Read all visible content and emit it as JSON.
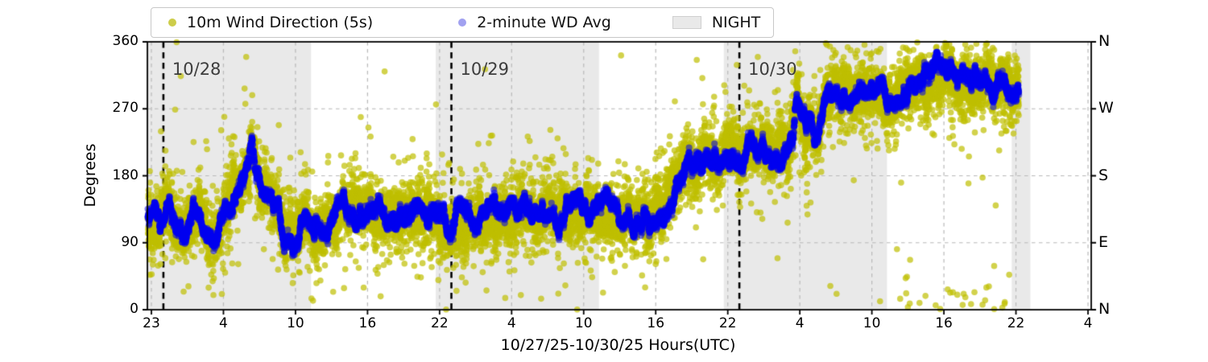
{
  "figure": {
    "ylabel": "Degrees",
    "xlabel": "10/27/25-10/30/25  Hours(UTC)"
  },
  "legend": {
    "items": [
      {
        "label": "10m Wind Direction (5s)",
        "marker": "dot",
        "display_color": "#cdcd4a"
      },
      {
        "label": "2-minute WD Avg",
        "marker": "dot",
        "display_color": "#a1a1f0"
      },
      {
        "label": "NIGHT",
        "marker": "patch",
        "display_color": "#e9e9e9"
      }
    ]
  },
  "chart_data": {
    "type": "scatter",
    "title": "",
    "xlabel": "10/27/25-10/30/25  Hours(UTC)",
    "ylabel": "Degrees",
    "ylim": [
      0,
      360
    ],
    "y_ticks": [
      0,
      90,
      180,
      270,
      360
    ],
    "right_axis_labels_bottom_to_top": [
      "N",
      "E",
      "S",
      "W",
      "N"
    ],
    "x_tick_labels": [
      "23",
      "4",
      "10",
      "16",
      "22",
      "4",
      "10",
      "16",
      "22",
      "4",
      "10",
      "16",
      "22",
      "4"
    ],
    "x_axis_start": "10/27/25 23:00 UTC",
    "grid": true,
    "legend_position": "top-center-outside",
    "series": [
      {
        "name": "10m Wind Direction (5s)",
        "color": "#bfbf00",
        "marker": "dot",
        "sample_period_s": 5
      },
      {
        "name": "2-minute WD Avg",
        "color": "#0000f0",
        "marker": "dot",
        "sample_period_s": 120
      }
    ],
    "night_bands_hours": [
      [
        -0.35,
        13.3
      ],
      [
        23.7,
        37.3
      ],
      [
        47.7,
        61.3
      ],
      [
        71.7,
        73.25
      ]
    ],
    "date_lines": [
      {
        "label": "10/28",
        "hour": 1
      },
      {
        "label": "10/29",
        "hour": 25
      },
      {
        "label": "10/30",
        "hour": 49
      }
    ],
    "data_start_hour": -0.3,
    "data_end_hour": 72.3,
    "trend_deg_by_hour": [
      [
        -0.3,
        125
      ],
      [
        0,
        125
      ],
      [
        0.7,
        112
      ],
      [
        1.5,
        132
      ],
      [
        2.3,
        100
      ],
      [
        2.8,
        95
      ],
      [
        3.5,
        133
      ],
      [
        4,
        138
      ],
      [
        4.6,
        104
      ],
      [
        5.2,
        95
      ],
      [
        6,
        138
      ],
      [
        6.8,
        150
      ],
      [
        7.5,
        163
      ],
      [
        8,
        195
      ],
      [
        8.35,
        225
      ],
      [
        8.7,
        185
      ],
      [
        9.2,
        150
      ],
      [
        9.9,
        158
      ],
      [
        10.6,
        150
      ],
      [
        11.1,
        97
      ],
      [
        11.8,
        90
      ],
      [
        12.4,
        120
      ],
      [
        13,
        127
      ],
      [
        13.6,
        112
      ],
      [
        14.3,
        128
      ],
      [
        15,
        120
      ],
      [
        16,
        128
      ],
      [
        17,
        122
      ],
      [
        18,
        130
      ],
      [
        19,
        125
      ],
      [
        20,
        133
      ],
      [
        21,
        126
      ],
      [
        22,
        130
      ],
      [
        23,
        120
      ],
      [
        24,
        130
      ],
      [
        24.8,
        108
      ],
      [
        25.5,
        128
      ],
      [
        26.5,
        125
      ],
      [
        27.5,
        130
      ],
      [
        28.5,
        126
      ],
      [
        29.5,
        131
      ],
      [
        30.5,
        126
      ],
      [
        31.5,
        130
      ],
      [
        32.5,
        127
      ],
      [
        33.5,
        130
      ],
      [
        34.5,
        126
      ],
      [
        35.5,
        131
      ],
      [
        36.5,
        128
      ],
      [
        37.5,
        131
      ],
      [
        38.5,
        128
      ],
      [
        39.5,
        125
      ],
      [
        40.3,
        112
      ],
      [
        41,
        125
      ],
      [
        41.6,
        118
      ],
      [
        42.2,
        140
      ],
      [
        42.8,
        132
      ],
      [
        43.4,
        155
      ],
      [
        44,
        180
      ],
      [
        44.6,
        200
      ],
      [
        45.2,
        193
      ],
      [
        46,
        207
      ],
      [
        46.6,
        198
      ],
      [
        47.2,
        210
      ],
      [
        48,
        205
      ],
      [
        48.6,
        213
      ],
      [
        49.4,
        207
      ],
      [
        50,
        214
      ],
      [
        50.6,
        208
      ],
      [
        51.2,
        217
      ],
      [
        51.8,
        208
      ],
      [
        52.4,
        196
      ],
      [
        53,
        208
      ],
      [
        53.5,
        235
      ],
      [
        53.8,
        280
      ],
      [
        54.1,
        262
      ],
      [
        54.5,
        246
      ],
      [
        55,
        252
      ],
      [
        55.5,
        242
      ],
      [
        56,
        268
      ],
      [
        56.5,
        283
      ],
      [
        57,
        293
      ],
      [
        57.5,
        280
      ],
      [
        58,
        287
      ],
      [
        58.5,
        280
      ],
      [
        59,
        290
      ],
      [
        59.7,
        284
      ],
      [
        60.3,
        290
      ],
      [
        61,
        287
      ],
      [
        61.7,
        292
      ],
      [
        62.3,
        287
      ],
      [
        63,
        305
      ],
      [
        63.6,
        298
      ],
      [
        64.2,
        318
      ],
      [
        64.8,
        310
      ],
      [
        65.4,
        325
      ],
      [
        66,
        312
      ],
      [
        66.6,
        318
      ],
      [
        67.2,
        310
      ],
      [
        67.8,
        316
      ],
      [
        68.4,
        308
      ],
      [
        69,
        316
      ],
      [
        69.6,
        309
      ],
      [
        70.2,
        303
      ],
      [
        70.8,
        312
      ],
      [
        71.2,
        297
      ],
      [
        71.8,
        293
      ],
      [
        72.3,
        292
      ]
    ]
  },
  "colors": {
    "wind_5s": "#bfbf00",
    "wd_avg": "#0000f0",
    "night_band": "#e9e9e9",
    "gridline": "#b9b9b9",
    "spine": "#000000",
    "date_line": "#000000",
    "annotation_text": "#3d3d3d"
  }
}
